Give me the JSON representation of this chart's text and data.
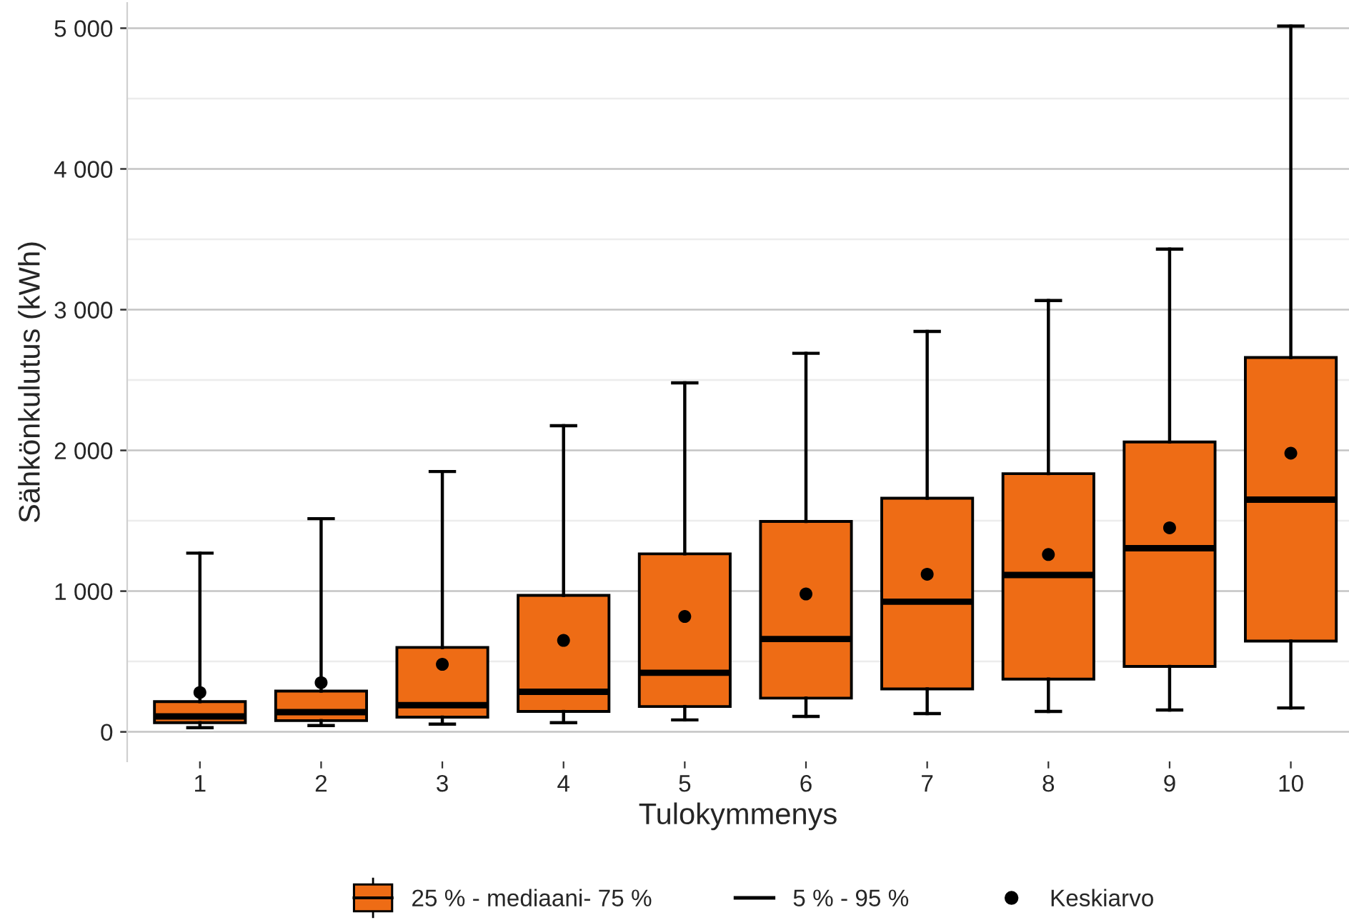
{
  "chart_data": {
    "type": "box",
    "xlabel": "Tulokymmenys",
    "ylabel": "Sähkönkulutus (kWh)",
    "categories": [
      "1",
      "2",
      "3",
      "4",
      "5",
      "6",
      "7",
      "8",
      "9",
      "10"
    ],
    "series": [
      {
        "name": "25 % - mediaani- 75 %",
        "color": "#ee6c15",
        "boxes": [
          {
            "low": 30,
            "q1": 65,
            "median": 110,
            "q3": 215,
            "high": 1270
          },
          {
            "low": 45,
            "q1": 80,
            "median": 140,
            "q3": 290,
            "high": 1515
          },
          {
            "low": 55,
            "q1": 105,
            "median": 190,
            "q3": 600,
            "high": 1850
          },
          {
            "low": 65,
            "q1": 145,
            "median": 285,
            "q3": 970,
            "high": 2175
          },
          {
            "low": 85,
            "q1": 180,
            "median": 420,
            "q3": 1265,
            "high": 2480
          },
          {
            "low": 110,
            "q1": 240,
            "median": 660,
            "q3": 1495,
            "high": 2690
          },
          {
            "low": 130,
            "q1": 305,
            "median": 925,
            "q3": 1660,
            "high": 2845
          },
          {
            "low": 145,
            "q1": 375,
            "median": 1115,
            "q3": 1835,
            "high": 3065
          },
          {
            "low": 155,
            "q1": 465,
            "median": 1305,
            "q3": 2060,
            "high": 3430
          },
          {
            "low": 170,
            "q1": 645,
            "median": 1650,
            "q3": 2660,
            "high": 5015
          }
        ]
      },
      {
        "type": "scatter",
        "name": "Keskiarvo",
        "color": "#000000",
        "marker": "circle",
        "x": [
          "1",
          "2",
          "3",
          "4",
          "5",
          "6",
          "7",
          "8",
          "9",
          "10"
        ],
        "values": [
          280,
          350,
          480,
          650,
          820,
          980,
          1120,
          1260,
          1450,
          1980
        ]
      }
    ],
    "annotations": [
      "5 % - 95 %"
    ],
    "ylim": [
      -210,
      5180
    ],
    "yticks": [
      0,
      {
        "value": 500,
        "label": null
      },
      {
        "value": 1000,
        "label": "1 000"
      },
      {
        "value": 1500,
        "label": null
      },
      {
        "value": 2000,
        "label": "2 000"
      },
      {
        "value": 2500,
        "label": null
      },
      {
        "value": 3000,
        "label": "3 000"
      },
      {
        "value": 3500,
        "label": null
      },
      {
        "value": 4000,
        "label": "4 000"
      },
      {
        "value": 4500,
        "label": null
      },
      {
        "value": 5000,
        "label": "5 000"
      }
    ],
    "grid": "y",
    "legend": "bottom"
  }
}
